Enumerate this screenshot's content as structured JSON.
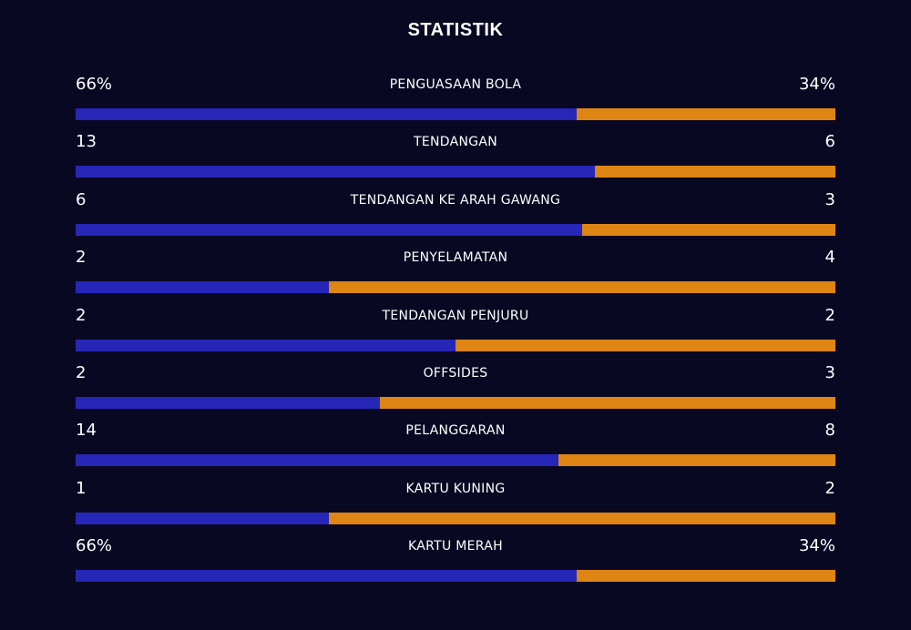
{
  "title": "STATISTIK",
  "colors": {
    "home": "#2626b8",
    "away": "#de8514",
    "background": "#090822"
  },
  "stats": [
    {
      "label": "PENGUASAAN BOLA",
      "home": "66%",
      "away": "34%",
      "home_share": 0.66
    },
    {
      "label": "TENDANGAN",
      "home": "13",
      "away": "6",
      "home_share": 0.684
    },
    {
      "label": "TENDANGAN KE ARAH GAWANG",
      "home": "6",
      "away": "3",
      "home_share": 0.667
    },
    {
      "label": "PENYELAMATAN",
      "home": "2",
      "away": "4",
      "home_share": 0.333
    },
    {
      "label": "TENDANGAN PENJURU",
      "home": "2",
      "away": "2",
      "home_share": 0.5
    },
    {
      "label": "OFFSIDES",
      "home": "2",
      "away": "3",
      "home_share": 0.4
    },
    {
      "label": "PELANGGARAN",
      "home": "14",
      "away": "8",
      "home_share": 0.636
    },
    {
      "label": "KARTU KUNING",
      "home": "1",
      "away": "2",
      "home_share": 0.333
    },
    {
      "label": "KARTU MERAH",
      "home": "66%",
      "away": "34%",
      "home_share": 0.66
    }
  ]
}
